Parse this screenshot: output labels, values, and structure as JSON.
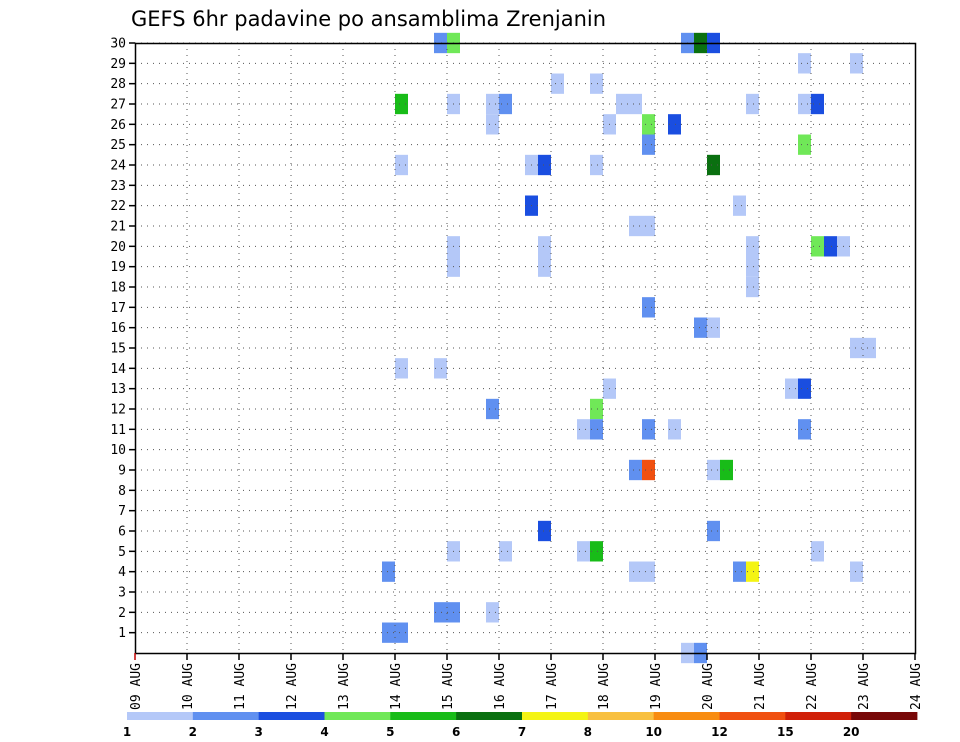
{
  "chart_data": {
    "type": "heatmap",
    "title": "GEFS 6hr padavine po ansamblima Zrenjanin",
    "x_ticks": [
      "09 AUG",
      "10 AUG",
      "11 AUG",
      "12 AUG",
      "13 AUG",
      "14 AUG",
      "15 AUG",
      "16 AUG",
      "17 AUG",
      "18 AUG",
      "19 AUG",
      "20 AUG",
      "21 AUG",
      "22 AUG",
      "23 AUG",
      "24 AUG"
    ],
    "y_ticks": [
      "1",
      "2",
      "3",
      "4",
      "5",
      "6",
      "7",
      "8",
      "9",
      "10",
      "11",
      "12",
      "13",
      "14",
      "15",
      "16",
      "17",
      "18",
      "19",
      "20",
      "21",
      "22",
      "23",
      "24",
      "25",
      "26",
      "27",
      "28",
      "29",
      "30"
    ],
    "x_range_days": [
      0,
      15
    ],
    "y_range": [
      0,
      30
    ],
    "grid": true,
    "levels": [
      "1",
      "2",
      "3",
      "4",
      "5",
      "6",
      "7",
      "8",
      "10",
      "12",
      "15",
      "20"
    ],
    "colors": [
      "#b4c8f8",
      "#6090f0",
      "#1a4ee0",
      "#70e858",
      "#18bc18",
      "#0a7010",
      "#f4f414",
      "#f8c040",
      "#f88c10",
      "#f05010",
      "#d02008",
      "#780808"
    ],
    "cells": [
      {
        "member": 30,
        "day": 5.75,
        "level": 2
      },
      {
        "member": 30,
        "day": 6.0,
        "level": 4
      },
      {
        "member": 30,
        "day": 10.5,
        "level": 2
      },
      {
        "member": 30,
        "day": 10.75,
        "level": 6
      },
      {
        "member": 30,
        "day": 11.0,
        "level": 3
      },
      {
        "member": 29,
        "day": 12.75,
        "level": 1
      },
      {
        "member": 29,
        "day": 13.75,
        "level": 1
      },
      {
        "member": 28,
        "day": 8.0,
        "level": 1
      },
      {
        "member": 28,
        "day": 8.75,
        "level": 1
      },
      {
        "member": 27,
        "day": 5.0,
        "level": 5
      },
      {
        "member": 27,
        "day": 6.0,
        "level": 1
      },
      {
        "member": 27,
        "day": 6.75,
        "level": 1
      },
      {
        "member": 27,
        "day": 7.0,
        "level": 2
      },
      {
        "member": 27,
        "day": 9.25,
        "level": 1
      },
      {
        "member": 27,
        "day": 9.5,
        "level": 1
      },
      {
        "member": 27,
        "day": 11.75,
        "level": 1
      },
      {
        "member": 27,
        "day": 12.75,
        "level": 1
      },
      {
        "member": 27,
        "day": 13.0,
        "level": 3
      },
      {
        "member": 26,
        "day": 6.75,
        "level": 1
      },
      {
        "member": 26,
        "day": 9.0,
        "level": 1
      },
      {
        "member": 26,
        "day": 9.75,
        "level": 4
      },
      {
        "member": 26,
        "day": 10.25,
        "level": 3
      },
      {
        "member": 25,
        "day": 9.75,
        "level": 2
      },
      {
        "member": 25,
        "day": 12.75,
        "level": 4
      },
      {
        "member": 24,
        "day": 5.0,
        "level": 1
      },
      {
        "member": 24,
        "day": 7.5,
        "level": 1
      },
      {
        "member": 24,
        "day": 7.75,
        "level": 3
      },
      {
        "member": 24,
        "day": 8.75,
        "level": 1
      },
      {
        "member": 24,
        "day": 11.0,
        "level": 6
      },
      {
        "member": 22,
        "day": 7.5,
        "level": 3
      },
      {
        "member": 22,
        "day": 11.5,
        "level": 1
      },
      {
        "member": 21,
        "day": 9.5,
        "level": 1
      },
      {
        "member": 21,
        "day": 9.75,
        "level": 1
      },
      {
        "member": 20,
        "day": 6.0,
        "level": 1
      },
      {
        "member": 20,
        "day": 7.75,
        "level": 1
      },
      {
        "member": 20,
        "day": 11.75,
        "level": 1
      },
      {
        "member": 20,
        "day": 13.0,
        "level": 4
      },
      {
        "member": 20,
        "day": 13.25,
        "level": 3
      },
      {
        "member": 20,
        "day": 13.5,
        "level": 1
      },
      {
        "member": 19,
        "day": 6.0,
        "level": 1
      },
      {
        "member": 19,
        "day": 7.75,
        "level": 1
      },
      {
        "member": 19,
        "day": 11.75,
        "level": 1
      },
      {
        "member": 18,
        "day": 11.75,
        "level": 1
      },
      {
        "member": 17,
        "day": 9.75,
        "level": 2
      },
      {
        "member": 16,
        "day": 10.75,
        "level": 2
      },
      {
        "member": 16,
        "day": 11.0,
        "level": 1
      },
      {
        "member": 15,
        "day": 13.75,
        "level": 1
      },
      {
        "member": 15,
        "day": 14.0,
        "level": 1
      },
      {
        "member": 14,
        "day": 5.0,
        "level": 1
      },
      {
        "member": 14,
        "day": 5.75,
        "level": 1
      },
      {
        "member": 13,
        "day": 9.0,
        "level": 1
      },
      {
        "member": 13,
        "day": 12.5,
        "level": 1
      },
      {
        "member": 13,
        "day": 12.75,
        "level": 3
      },
      {
        "member": 12,
        "day": 6.75,
        "level": 2
      },
      {
        "member": 12,
        "day": 8.75,
        "level": 4
      },
      {
        "member": 11,
        "day": 8.5,
        "level": 1
      },
      {
        "member": 11,
        "day": 8.75,
        "level": 2
      },
      {
        "member": 11,
        "day": 9.75,
        "level": 2
      },
      {
        "member": 11,
        "day": 10.25,
        "level": 1
      },
      {
        "member": 11,
        "day": 12.75,
        "level": 2
      },
      {
        "member": 9,
        "day": 9.5,
        "level": 2
      },
      {
        "member": 9,
        "day": 9.75,
        "level": 10
      },
      {
        "member": 9,
        "day": 11.0,
        "level": 1
      },
      {
        "member": 9,
        "day": 11.25,
        "level": 5
      },
      {
        "member": 6,
        "day": 7.75,
        "level": 3
      },
      {
        "member": 6,
        "day": 11.0,
        "level": 2
      },
      {
        "member": 5,
        "day": 6.0,
        "level": 1
      },
      {
        "member": 5,
        "day": 7.0,
        "level": 1
      },
      {
        "member": 5,
        "day": 8.5,
        "level": 1
      },
      {
        "member": 5,
        "day": 8.75,
        "level": 5
      },
      {
        "member": 5,
        "day": 13.0,
        "level": 1
      },
      {
        "member": 4,
        "day": 4.75,
        "level": 2
      },
      {
        "member": 4,
        "day": 9.5,
        "level": 1
      },
      {
        "member": 4,
        "day": 9.75,
        "level": 1
      },
      {
        "member": 4,
        "day": 11.5,
        "level": 2
      },
      {
        "member": 4,
        "day": 11.75,
        "level": 7
      },
      {
        "member": 4,
        "day": 13.75,
        "level": 1
      },
      {
        "member": 2,
        "day": 5.75,
        "level": 2
      },
      {
        "member": 2,
        "day": 6.0,
        "level": 2
      },
      {
        "member": 2,
        "day": 6.75,
        "level": 1
      },
      {
        "member": 1,
        "day": 4.75,
        "level": 2
      },
      {
        "member": 1,
        "day": 5.0,
        "level": 2
      },
      {
        "member": 0,
        "day": 10.5,
        "level": 1
      },
      {
        "member": 0,
        "day": 10.75,
        "level": 2
      }
    ]
  }
}
